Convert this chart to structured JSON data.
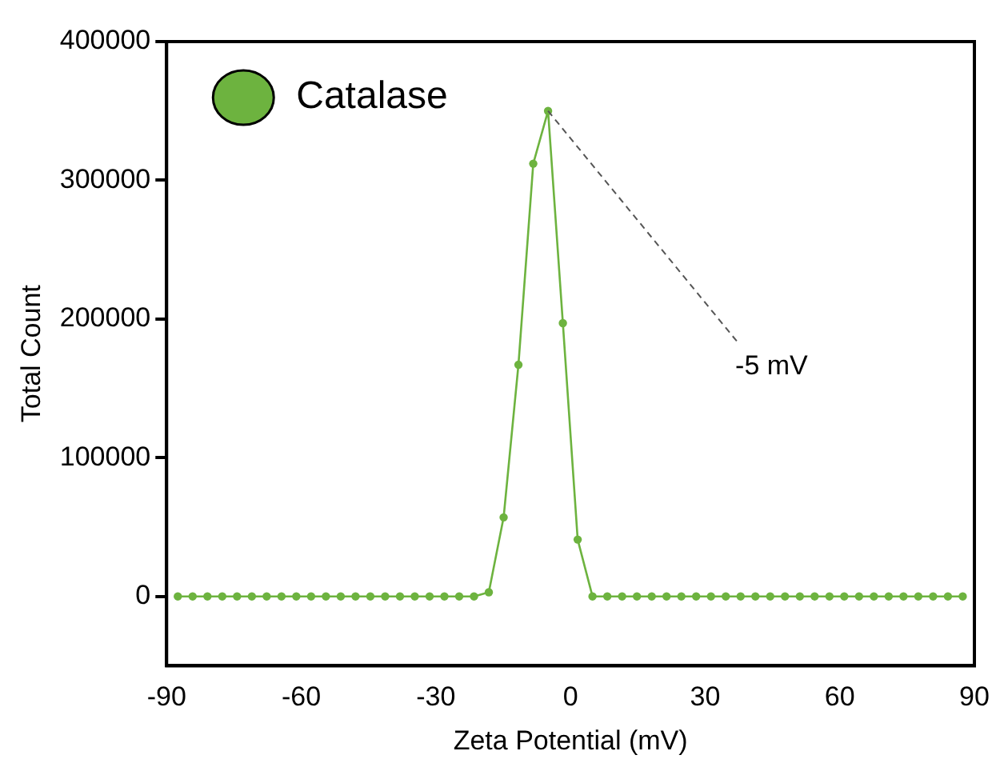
{
  "chart_data": {
    "type": "line",
    "xlabel": "Zeta Potential (mV)",
    "ylabel": "Total Count",
    "x": [
      -87.5,
      -84.2,
      -80.9,
      -77.6,
      -74.3,
      -71,
      -67.7,
      -64.4,
      -61.1,
      -57.8,
      -54.5,
      -51.2,
      -47.9,
      -44.6,
      -41.3,
      -38,
      -34.7,
      -31.4,
      -28.1,
      -24.8,
      -21.5,
      -18.2,
      -14.9,
      -11.6,
      -8.3,
      -5,
      -1.7,
      1.6,
      4.9,
      8.2,
      11.5,
      14.8,
      18.1,
      21.4,
      24.7,
      28,
      31.3,
      34.6,
      37.9,
      41.2,
      44.5,
      47.8,
      51.1,
      54.4,
      57.7,
      61,
      64.3,
      67.6,
      70.9,
      74.2,
      77.5,
      80.8,
      84.1,
      87.4
    ],
    "series": [
      {
        "name": "Catalase",
        "color": "#6db33f",
        "values": [
          0,
          0,
          0,
          0,
          0,
          0,
          0,
          0,
          0,
          0,
          0,
          0,
          0,
          0,
          0,
          0,
          0,
          0,
          0,
          0,
          0,
          3000,
          57000,
          167000,
          312000,
          350000,
          197000,
          41000,
          0,
          0,
          0,
          0,
          0,
          0,
          0,
          0,
          0,
          0,
          0,
          0,
          0,
          0,
          0,
          0,
          0,
          0,
          0,
          0,
          0,
          0,
          0,
          0,
          0,
          0
        ]
      }
    ],
    "xlim": [
      -90,
      90
    ],
    "xticks": [
      -90,
      -60,
      -30,
      0,
      30,
      60,
      90
    ],
    "ylim": [
      -50000,
      400000
    ],
    "yticks": [
      0,
      100000,
      200000,
      300000,
      400000
    ],
    "annotations": [
      {
        "text": "-5 mV",
        "x": -5,
        "y": 350000
      }
    ],
    "grid": false,
    "legend": "top left",
    "marker": "circle",
    "line_style": "solid"
  }
}
